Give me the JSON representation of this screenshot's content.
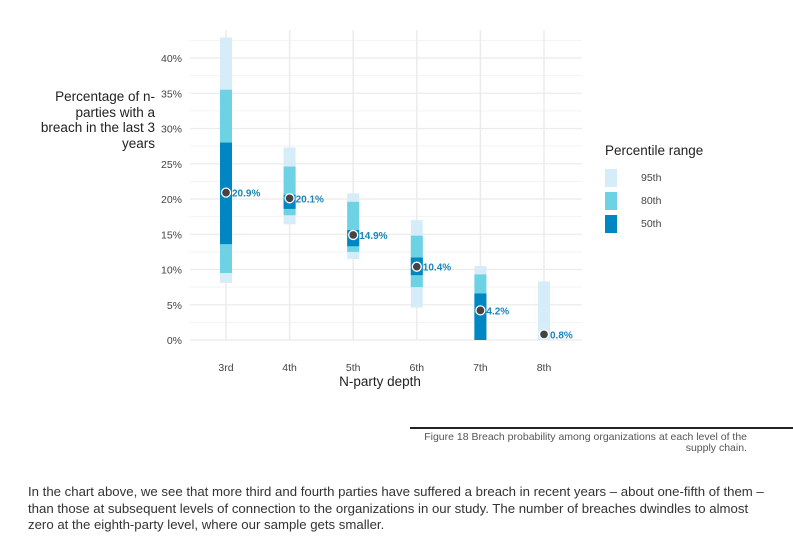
{
  "chart_data": {
    "type": "range-bar",
    "ylabel": "Percentage of n-parties with a breach in the last 3 years",
    "xlabel": "N-party depth",
    "ylim": [
      0,
      43
    ],
    "yticks": [
      0,
      5,
      10,
      15,
      20,
      25,
      30,
      35,
      40
    ],
    "ytick_labels": [
      "0%",
      "5%",
      "10%",
      "15%",
      "20%",
      "25%",
      "30%",
      "35%",
      "40%"
    ],
    "grid": true,
    "categories": [
      "3rd",
      "4th",
      "5th",
      "6th",
      "7th",
      "8th"
    ],
    "values": [
      20.9,
      20.1,
      14.9,
      10.4,
      4.2,
      0.8
    ],
    "value_labels": [
      "20.9%",
      "20.1%",
      "14.9%",
      "10.4%",
      "4.2%",
      "0.8%"
    ],
    "ranges": {
      "95th": [
        [
          8.1,
          42.9
        ],
        [
          16.4,
          27.3
        ],
        [
          11.5,
          20.8
        ],
        [
          4.6,
          17.0
        ],
        [
          0,
          10.5
        ],
        [
          0,
          8.3
        ]
      ],
      "80th": [
        [
          9.5,
          35.5
        ],
        [
          17.7,
          24.6
        ],
        [
          12.5,
          19.6
        ],
        [
          7.5,
          14.8
        ],
        [
          0,
          9.3
        ],
        null
      ],
      "50th": [
        [
          13.6,
          28.0
        ],
        [
          18.6,
          20.6
        ],
        [
          13.3,
          15.6
        ],
        [
          9.2,
          11.7
        ],
        [
          0,
          6.6
        ],
        null
      ]
    },
    "legend": {
      "title": "Percentile range",
      "placement": "right",
      "items": [
        {
          "label": "95th",
          "color": "#d6ecf8"
        },
        {
          "label": "80th",
          "color": "#6dd2e4"
        },
        {
          "label": "50th",
          "color": "#0087c3"
        }
      ]
    },
    "label_color": "#1a86b8",
    "point_color": "#444444"
  },
  "caption": "Figure 18 Breach probability among organizations at each level of the supply chain.",
  "paragraph": "In the chart above, we see that more third and fourth parties have suffered a breach in recent years – about one-fifth of them – than those at subsequent levels of connection to the organizations in our study. The number of breaches dwindles to almost zero at the eighth-party level, where our sample gets smaller."
}
